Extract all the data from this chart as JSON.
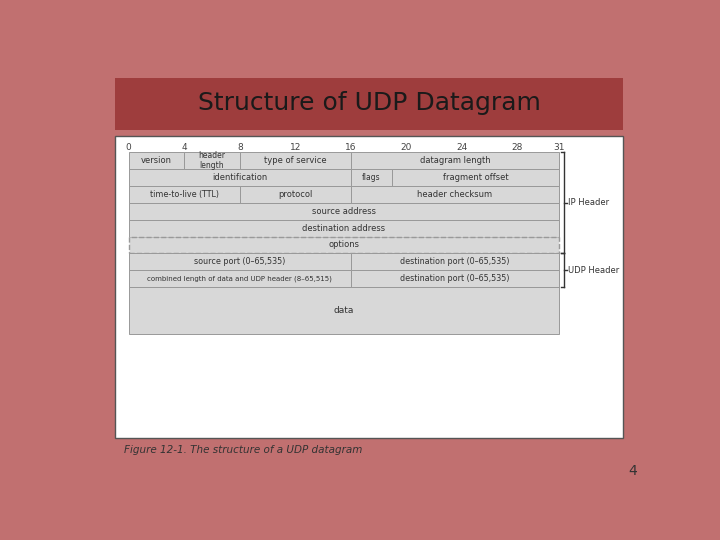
{
  "title": "Structure of UDP Datagram",
  "title_bg": "#9E3D3D",
  "title_color": "#1a1a1a",
  "page_bg": "#C17070",
  "cell_bg": "#D8D8D8",
  "cell_border": "#999999",
  "figure_caption": "Figure 12-1. The structure of a UDP datagram",
  "page_number": "4",
  "bit_labels": [
    "0",
    "4",
    "8",
    "12",
    "16",
    "20",
    "24",
    "28",
    "31"
  ],
  "bit_positions": [
    0,
    4,
    8,
    12,
    16,
    20,
    24,
    28,
    31
  ],
  "ip_header_label": "IP Header",
  "udp_header_label": "UDP Header"
}
